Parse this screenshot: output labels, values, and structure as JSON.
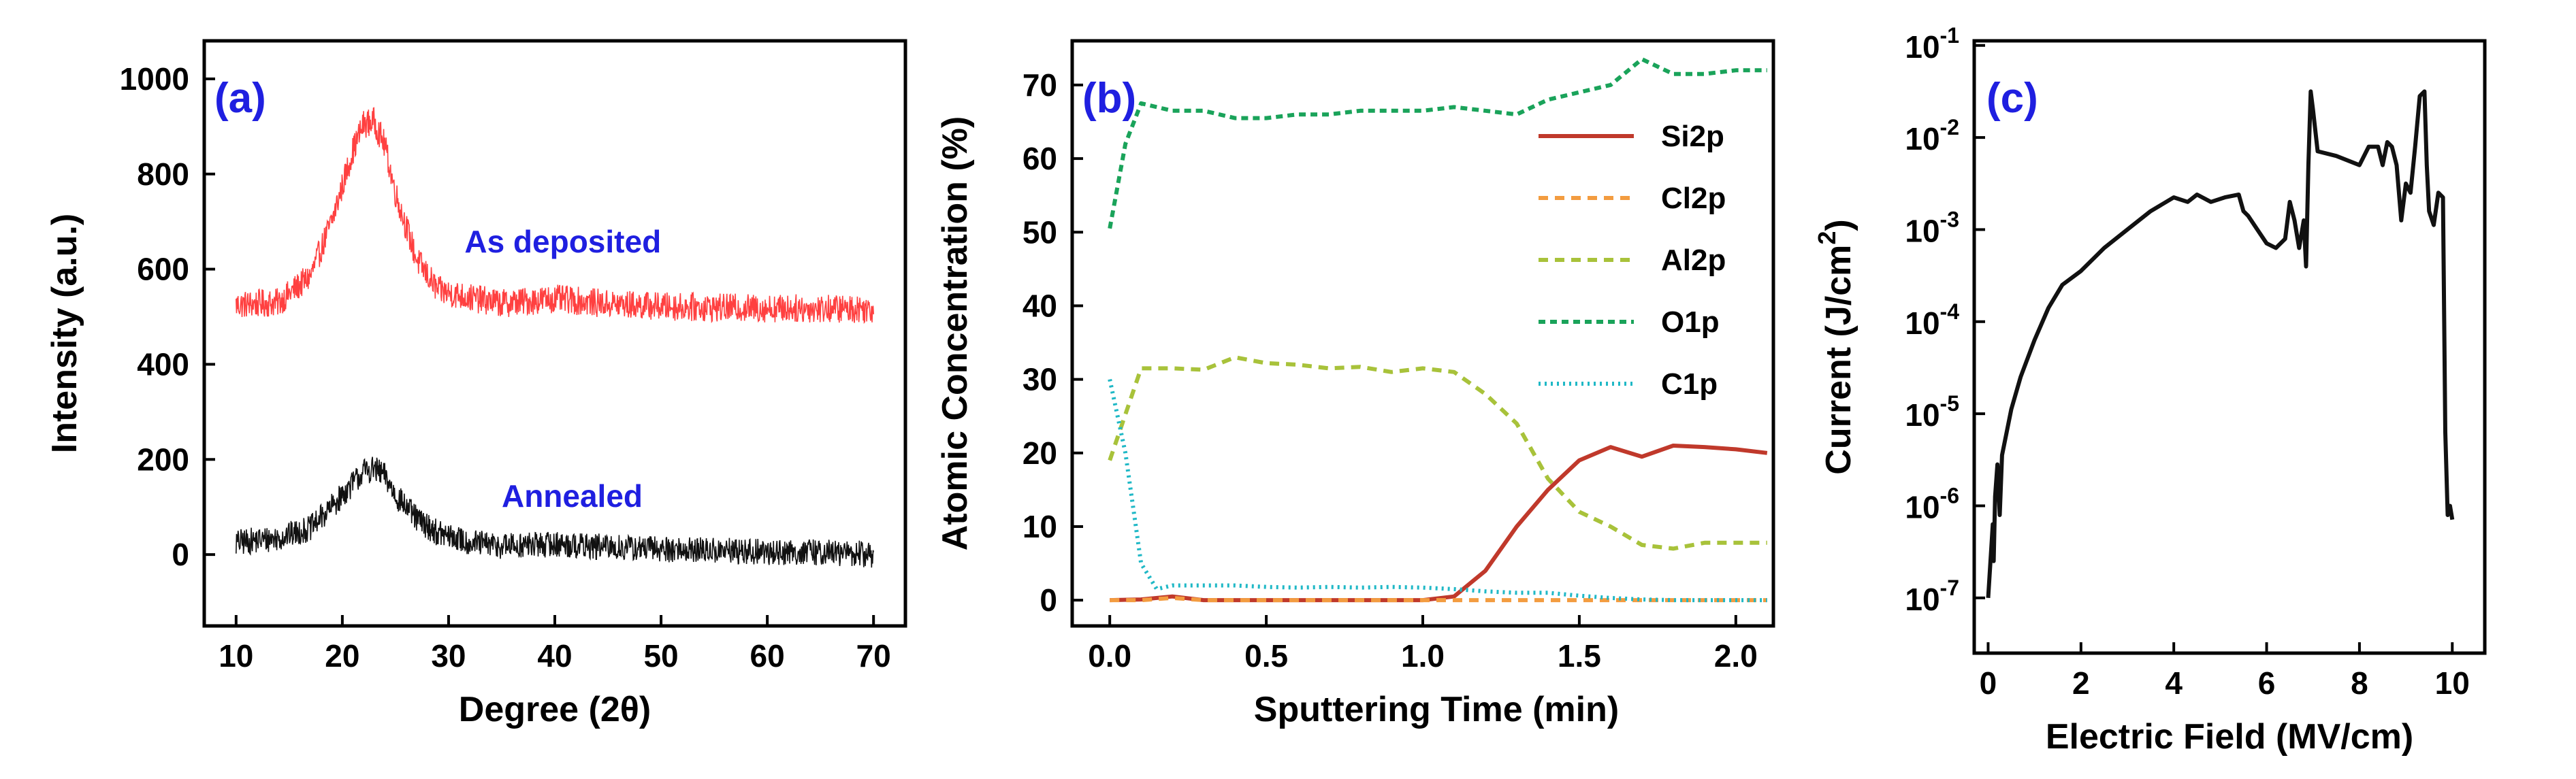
{
  "chart_data": [
    {
      "type": "line",
      "panel_label": "(a)",
      "xlabel": "Degree (2θ)",
      "ylabel": "Intensity (a.u.)",
      "xlim": [
        7,
        73
      ],
      "ylim": [
        -150,
        1080
      ],
      "xticks": [
        10,
        20,
        30,
        40,
        50,
        60,
        70
      ],
      "xtick_labels": [
        "10",
        "20",
        "30",
        "40",
        "50",
        "60",
        "70"
      ],
      "yticks": [
        0,
        200,
        400,
        600,
        800,
        1000
      ],
      "ytick_labels": [
        "0",
        "200",
        "400",
        "600",
        "800",
        "1000"
      ],
      "series": [
        {
          "name": "As deposited",
          "color": "#ff4040",
          "noise": 30,
          "points": [
            [
              10,
              525
            ],
            [
              14,
              530
            ],
            [
              17,
              585
            ],
            [
              19,
              700
            ],
            [
              21,
              850
            ],
            [
              22,
              905
            ],
            [
              23,
              910
            ],
            [
              24,
              860
            ],
            [
              25,
              760
            ],
            [
              27,
              620
            ],
            [
              29,
              555
            ],
            [
              32,
              540
            ],
            [
              35,
              528
            ],
            [
              40,
              538
            ],
            [
              45,
              527
            ],
            [
              50,
              522
            ],
            [
              55,
              519
            ],
            [
              60,
              518
            ],
            [
              65,
              517
            ],
            [
              70,
              517
            ]
          ]
        },
        {
          "name": "Annealed",
          "color": "#111111",
          "noise": 28,
          "points": [
            [
              10,
              25
            ],
            [
              14,
              35
            ],
            [
              17,
              55
            ],
            [
              19,
              100
            ],
            [
              21,
              150
            ],
            [
              22,
              175
            ],
            [
              23,
              180
            ],
            [
              24,
              165
            ],
            [
              25,
              125
            ],
            [
              27,
              75
            ],
            [
              29,
              45
            ],
            [
              32,
              25
            ],
            [
              35,
              18
            ],
            [
              40,
              22
            ],
            [
              45,
              15
            ],
            [
              50,
              12
            ],
            [
              55,
              8
            ],
            [
              60,
              5
            ],
            [
              65,
              5
            ],
            [
              70,
              0
            ]
          ]
        }
      ],
      "annotations": [
        {
          "text": "As deposited",
          "x": 31.5,
          "y": 635
        },
        {
          "text": "Annealed",
          "x": 35,
          "y": 100
        }
      ]
    },
    {
      "type": "line",
      "panel_label": "(b)",
      "xlabel": "Sputtering Time (min)",
      "ylabel": "Atomic Concentration (%)",
      "xlim": [
        -0.12,
        2.12
      ],
      "ylim": [
        -3.5,
        76
      ],
      "xticks": [
        0.0,
        0.5,
        1.0,
        1.5,
        2.0
      ],
      "xtick_labels": [
        "0.0",
        "0.5",
        "1.0",
        "1.5",
        "2.0"
      ],
      "yticks": [
        0,
        10,
        20,
        30,
        40,
        50,
        60,
        70
      ],
      "ytick_labels": [
        "0",
        "10",
        "20",
        "30",
        "40",
        "50",
        "60",
        "70"
      ],
      "legend_position": "upper-right",
      "series": [
        {
          "name": "Si2p",
          "color": "#c0392b",
          "dash": "none",
          "x": [
            0.0,
            0.1,
            0.2,
            0.3,
            0.4,
            0.5,
            0.6,
            0.7,
            0.8,
            0.9,
            1.0,
            1.1,
            1.2,
            1.3,
            1.4,
            1.5,
            1.6,
            1.7,
            1.8,
            1.9,
            2.0,
            2.1
          ],
          "values": [
            0,
            0.1,
            0.5,
            0,
            0,
            0,
            0,
            0,
            0,
            0,
            0,
            0.5,
            4,
            10,
            15,
            19,
            20.8,
            19.5,
            21,
            20.8,
            20.5,
            20
          ]
        },
        {
          "name": "Cl2p",
          "color": "#f39c40",
          "dash": "14 10",
          "x": [
            0.0,
            0.1,
            0.2,
            0.3,
            0.4,
            0.5,
            0.6,
            0.7,
            0.8,
            0.9,
            1.0,
            1.1,
            1.2,
            1.3,
            1.4,
            1.5,
            1.6,
            1.7,
            1.8,
            1.9,
            2.0,
            2.1
          ],
          "values": [
            0,
            0,
            0.3,
            0,
            0,
            0,
            0,
            0,
            0,
            0,
            0,
            0,
            0,
            0,
            0,
            0,
            0,
            0,
            0,
            0,
            0,
            0
          ]
        },
        {
          "name": "Al2p",
          "color": "#a8c23a",
          "dash": "14 10",
          "x": [
            0.0,
            0.1,
            0.2,
            0.3,
            0.4,
            0.5,
            0.6,
            0.7,
            0.8,
            0.9,
            1.0,
            1.1,
            1.2,
            1.3,
            1.4,
            1.5,
            1.6,
            1.7,
            1.8,
            1.9,
            2.0,
            2.1
          ],
          "values": [
            19,
            31.5,
            31.5,
            31.3,
            33,
            32.2,
            32,
            31.5,
            31.7,
            31,
            31.5,
            31,
            28,
            24,
            16.5,
            12,
            10,
            7.5,
            7,
            7.8,
            7.8,
            7.8
          ]
        },
        {
          "name": "O1p",
          "color": "#1aa35a",
          "dash": "10 7",
          "x": [
            0.0,
            0.05,
            0.1,
            0.2,
            0.3,
            0.4,
            0.5,
            0.6,
            0.7,
            0.8,
            0.9,
            1.0,
            1.1,
            1.2,
            1.3,
            1.4,
            1.5,
            1.6,
            1.7,
            1.8,
            1.9,
            2.0,
            2.1
          ],
          "values": [
            50.5,
            62,
            67.5,
            66.5,
            66.5,
            65.5,
            65.5,
            66,
            66,
            66.5,
            66.5,
            66.5,
            67,
            66.5,
            66,
            68,
            69,
            70,
            73.5,
            71.5,
            71.5,
            72,
            72
          ]
        },
        {
          "name": "C1p",
          "color": "#1fb8c6",
          "dash": "3 6",
          "x": [
            0.0,
            0.05,
            0.1,
            0.15,
            0.2,
            0.3,
            0.4,
            0.5,
            0.6,
            0.7,
            0.8,
            0.9,
            1.0,
            1.1,
            1.2,
            1.3,
            1.4,
            1.5,
            1.6,
            1.7,
            1.8,
            1.9,
            2.0,
            2.1
          ],
          "values": [
            30,
            20,
            5,
            1.5,
            2,
            2,
            2,
            1.8,
            1.7,
            1.8,
            1.7,
            1.8,
            1.7,
            1.5,
            1.2,
            1,
            1,
            0.6,
            0.3,
            0.1,
            0,
            0,
            0,
            0
          ]
        }
      ]
    },
    {
      "type": "line",
      "panel_label": "(c)",
      "xlabel": "Electric Field (MV/cm)",
      "ylabel": "Current (J/cm²)",
      "ylabel_base": "Current (J/cm",
      "ylabel_sup": "2",
      "ylabel_end": ")",
      "y_scale": "log",
      "xlim": [
        -0.3,
        10.7
      ],
      "ylim_exp": [
        -7.6,
        -0.95
      ],
      "xticks": [
        0,
        2,
        4,
        6,
        8,
        10
      ],
      "xtick_labels": [
        "0",
        "2",
        "4",
        "6",
        "8",
        "10"
      ],
      "yticks_exp": [
        -7,
        -6,
        -5,
        -4,
        -3,
        -2,
        -1
      ],
      "ytick_labels": [
        {
          "base": "10",
          "exp": "-7"
        },
        {
          "base": "10",
          "exp": "-6"
        },
        {
          "base": "10",
          "exp": "-5"
        },
        {
          "base": "10",
          "exp": "-4"
        },
        {
          "base": "10",
          "exp": "-3"
        },
        {
          "base": "10",
          "exp": "-2"
        },
        {
          "base": "10",
          "exp": "-1"
        }
      ],
      "series": [
        {
          "name": "Current",
          "color": "#111111",
          "x": [
            0.0,
            0.05,
            0.1,
            0.12,
            0.15,
            0.2,
            0.25,
            0.3,
            0.4,
            0.5,
            0.7,
            1.0,
            1.3,
            1.6,
            2.0,
            2.5,
            3.0,
            3.5,
            4.0,
            4.3,
            4.5,
            4.8,
            5.1,
            5.4,
            5.5,
            5.6,
            5.8,
            6.0,
            6.2,
            6.4,
            6.5,
            6.6,
            6.7,
            6.8,
            6.85,
            6.9,
            6.95,
            7.0,
            7.1,
            7.5,
            8.0,
            8.2,
            8.4,
            8.5,
            8.6,
            8.7,
            8.8,
            8.9,
            9.0,
            9.1,
            9.2,
            9.3,
            9.4,
            9.45,
            9.5,
            9.6,
            9.7,
            9.8,
            9.85,
            9.9,
            9.95,
            10.0
          ],
          "exps": [
            -7.0,
            -6.6,
            -6.2,
            -6.6,
            -5.9,
            -5.55,
            -6.1,
            -5.45,
            -5.2,
            -4.95,
            -4.6,
            -4.2,
            -3.85,
            -3.6,
            -3.45,
            -3.2,
            -3.0,
            -2.8,
            -2.65,
            -2.7,
            -2.62,
            -2.7,
            -2.65,
            -2.62,
            -2.8,
            -2.85,
            -3.0,
            -3.15,
            -3.2,
            -3.1,
            -2.7,
            -2.9,
            -3.2,
            -2.9,
            -3.4,
            -2.3,
            -1.5,
            -1.7,
            -2.15,
            -2.2,
            -2.3,
            -2.1,
            -2.1,
            -2.3,
            -2.05,
            -2.1,
            -2.3,
            -2.9,
            -2.5,
            -2.6,
            -2.1,
            -1.55,
            -1.5,
            -2.3,
            -2.8,
            -2.95,
            -2.6,
            -2.65,
            -5.2,
            -6.1,
            -6.0,
            -6.15
          ]
        }
      ]
    }
  ]
}
